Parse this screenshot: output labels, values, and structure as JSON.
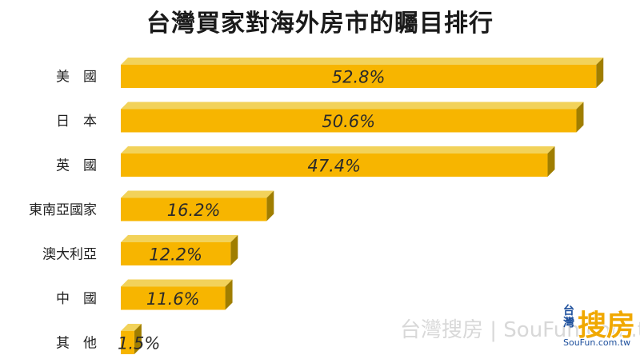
{
  "chart_data": {
    "type": "bar",
    "orientation": "horizontal",
    "title": "台灣買家對海外房市的矚目排行",
    "categories": [
      "美　國",
      "日　本",
      "英　國",
      "東南亞國家",
      "澳大利亞",
      "中　國",
      "其　他"
    ],
    "values": [
      52.8,
      50.6,
      47.4,
      16.2,
      12.2,
      11.6,
      1.5
    ],
    "value_labels": [
      "52.8%",
      "50.6%",
      "47.4%",
      "16.2%",
      "12.2%",
      "11.6%",
      "1.5%"
    ],
    "xlim": [
      0,
      55
    ],
    "grid": false,
    "legend": "none",
    "bar_color": "#f7b500",
    "bar_top_color": "#f2d25a",
    "bar_side_color": "#a07e00"
  },
  "watermark": {
    "text": "台灣搜房 | SouFun.com.tw"
  },
  "logo": {
    "main": "搜房",
    "side": "台灣",
    "url": "SouFun.com.tw",
    "color": "#f0a800",
    "accent": "#1d4f9c"
  }
}
